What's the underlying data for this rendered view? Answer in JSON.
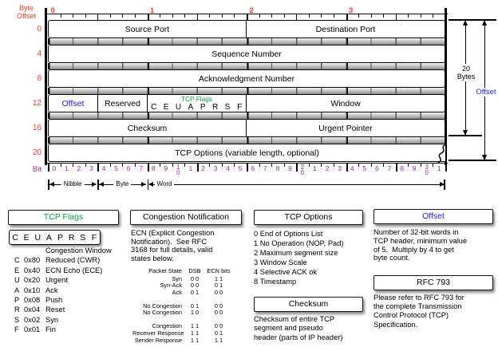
{
  "colors": {
    "red": "#f4432c",
    "purple": "#993399",
    "green": "#0da13f",
    "blue": "#2222ee"
  },
  "diagram": {
    "byte_offset_label": "Byte Offset",
    "byte_numbers": [
      "0",
      "1",
      "2",
      "3"
    ],
    "row_offsets": [
      "0",
      "4",
      "8",
      "12",
      "16",
      "20"
    ],
    "rows": [
      {
        "cells": [
          {
            "text": "Source Port",
            "bits": 16
          },
          {
            "text": "Destination Port",
            "bits": 16
          }
        ]
      },
      {
        "cells": [
          {
            "text": "Sequence Number",
            "bits": 32
          }
        ]
      },
      {
        "cells": [
          {
            "text": "Acknowledgment Number",
            "bits": 32
          }
        ]
      },
      {
        "cells": [
          {
            "text": "Offset",
            "bits": 4,
            "style": "blue"
          },
          {
            "text": "Reserved",
            "bits": 4
          },
          {
            "title": "TCP Flags",
            "letters": [
              "C",
              "E",
              "U",
              "A",
              "P",
              "R",
              "S",
              "F"
            ],
            "bits": 8
          },
          {
            "text": "Window",
            "bits": 16
          }
        ]
      },
      {
        "cells": [
          {
            "text": "Checksum",
            "bits": 16
          },
          {
            "text": "Urgent Pointer",
            "bits": 16
          }
        ]
      },
      {
        "cells": [
          {
            "text": "TCP Options (variable length, optional)",
            "bits": 32,
            "torn": true
          }
        ]
      }
    ],
    "bit_label": "Bit",
    "bit_numbers": [
      "0",
      "1",
      "2",
      "3",
      "4",
      "5",
      "6",
      "7",
      "8",
      "9",
      "10",
      "1",
      "2",
      "3",
      "4",
      "5",
      "6",
      "7",
      "8",
      "9",
      "20",
      "1",
      "2",
      "3",
      "4",
      "5",
      "6",
      "7",
      "8",
      "9",
      "30",
      "1"
    ],
    "measures": [
      {
        "label": "Nibble",
        "bits": 4
      },
      {
        "label": "Byte",
        "bits": 4
      },
      {
        "label": "Word",
        "bits": 24
      }
    ],
    "extents": {
      "bytes": "20 Bytes",
      "offset": "Offset"
    }
  },
  "panels": {
    "tcp_flags": {
      "title": "TCP Flags",
      "letters": [
        "C",
        "E",
        "U",
        "A",
        "P",
        "R",
        "S",
        "F"
      ],
      "intro": "Congestion Window",
      "flags": [
        {
          "l": "C",
          "hex": "0x80",
          "desc": "Reduced (CWR)"
        },
        {
          "l": "E",
          "hex": "0x40",
          "desc": "ECN Echo (ECE)"
        },
        {
          "l": "U",
          "hex": "0x20",
          "desc": "Urgent"
        },
        {
          "l": "A",
          "hex": "0x10",
          "desc": "Ack"
        },
        {
          "l": "P",
          "hex": "0x08",
          "desc": "Push"
        },
        {
          "l": "R",
          "hex": "0x04",
          "desc": "Reset"
        },
        {
          "l": "S",
          "hex": "0x02",
          "desc": "Syn"
        },
        {
          "l": "F",
          "hex": "0x01",
          "desc": "Fin"
        }
      ]
    },
    "congestion": {
      "title": "Congestion Notification",
      "body_lines": [
        "ECN (Explicit Congestion",
        "Notification).  See RFC",
        "3168 for full details, valid",
        "states below."
      ],
      "table": {
        "headers": [
          "Packet State",
          "DSB",
          "ECN bits"
        ],
        "groups": [
          [
            [
              "Syn",
              "0 0",
              "1 1"
            ],
            [
              "Syn-Ack",
              "0 0",
              "0 1"
            ],
            [
              "Ack",
              "0 1",
              "0 0"
            ]
          ],
          [
            [
              "No Congestion",
              "0 1",
              "0 0"
            ],
            [
              "No Congestion",
              "1 0",
              "0 0"
            ]
          ],
          [
            [
              "Congestion",
              "1 1",
              "0 0"
            ],
            [
              "Receiver Response",
              "1 1",
              "0 1"
            ],
            [
              "Sender Response",
              "1 1",
              "1 1"
            ]
          ]
        ]
      }
    },
    "tcp_options": {
      "title": "TCP Options",
      "items": [
        "0 End of Options List",
        "1 No Operation (NOP, Pad)",
        "2 Maximum segment size",
        "3 Window Scale",
        "4 Selective ACK ok",
        "8 Timestamp"
      ]
    },
    "checksum": {
      "title": "Checksum",
      "body_lines": [
        "Checksum of entire TCP",
        "segment and pseudo",
        "header (parts of IP header)"
      ]
    },
    "offset": {
      "title": "Offset",
      "body_lines": [
        "Number of 32-bit words in",
        "TCP header, minimum value",
        "of 5.  Multiply by 4 to get",
        "byte count."
      ]
    },
    "rfc": {
      "title": "RFC 793",
      "body_lines": [
        "Please refer to RFC 793 for",
        "the complete Transmission",
        "Control Protocol (TCP)",
        "Specification."
      ]
    }
  }
}
